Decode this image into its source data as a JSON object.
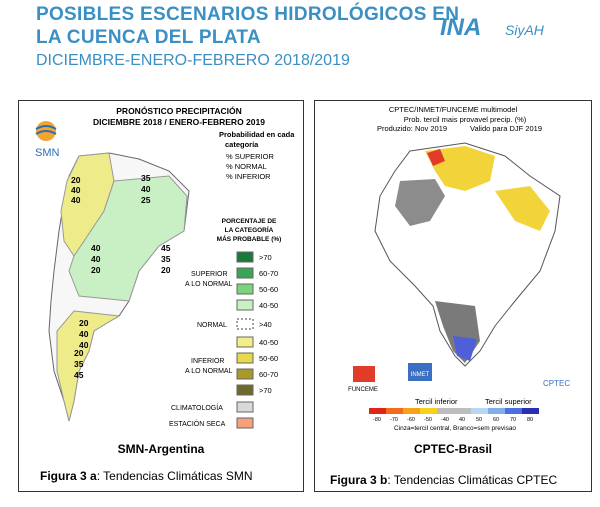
{
  "header": {
    "title_line1": "POSIBLES ESCENARIOS HIDROLÓGICOS EN",
    "title_line2": "LA CUENCA DEL PLATA",
    "subtitle": "DICIEMBRE-ENERO-FEBRERO 2018/2019",
    "logo_main": "INA",
    "logo_sub": "SiyAH"
  },
  "left_panel": {
    "title_line1": "PRONÓSTICO PRECIPITACIÓN",
    "title_line2": "DICIEMBRE 2018 / ENERO-FEBRERO 2019",
    "logo": "SMN",
    "key_title": [
      "Probabilidad en cada",
      "categoría"
    ],
    "key_items": [
      "% SUPERIOR",
      "% NORMAL",
      "% INFERIOR"
    ],
    "map_labels": [
      [
        "20",
        "40",
        "40"
      ],
      [
        "35",
        "40",
        "25"
      ],
      [
        "40",
        "40",
        "20"
      ],
      [
        "45",
        "35",
        "20"
      ],
      [
        "20",
        "40",
        "40"
      ],
      [
        "20",
        "35",
        "45"
      ]
    ],
    "legend_title": [
      "PORCENTAJE DE",
      "LA CATEGORÍA",
      "MÁS PROBABLE (%)"
    ],
    "superior_label": [
      "SUPERIOR",
      "A LO NORMAL"
    ],
    "superior_items": [
      ">70",
      "60-70",
      "50-60",
      "40-50"
    ],
    "normal_label": "NORMAL",
    "normal_item": ">40",
    "inferior_label": [
      "INFERIOR",
      "A LO NORMAL"
    ],
    "inferior_items": [
      "40-50",
      "50-60",
      "60-70",
      ">70"
    ],
    "climatologia": "CLIMATOLOGÍA",
    "estacion_seca": "ESTACIÓN SECA",
    "caption": "SMN-Argentina"
  },
  "right_panel": {
    "title_line1": "CPTEC/INMET/FUNCEME multimodel",
    "title_line2": "Prob. tercil mais provavel precip. (%)",
    "produced": "Produzido: Nov 2019",
    "valid": "Valido para DJF 2019",
    "logos": [
      "FUNCEME",
      "INMET",
      "CPTEC"
    ],
    "lower_label": "Tercil inferior",
    "upper_label": "Tercil superior",
    "scale_labels": [
      "-80",
      "-70",
      "-60",
      "-50",
      "-40",
      "40",
      "50",
      "60",
      "70",
      "80"
    ],
    "note": "Cinza=tercil central, Branco=sem previsao",
    "caption": "CPTEC-Brasil"
  },
  "figure_a": {
    "label": "Figura 3 a",
    "text": ": Tendencias Climáticas SMN"
  },
  "figure_b": {
    "label": "Figura 3 b",
    "text": ": Tendencias Climáticas CPTEC"
  }
}
